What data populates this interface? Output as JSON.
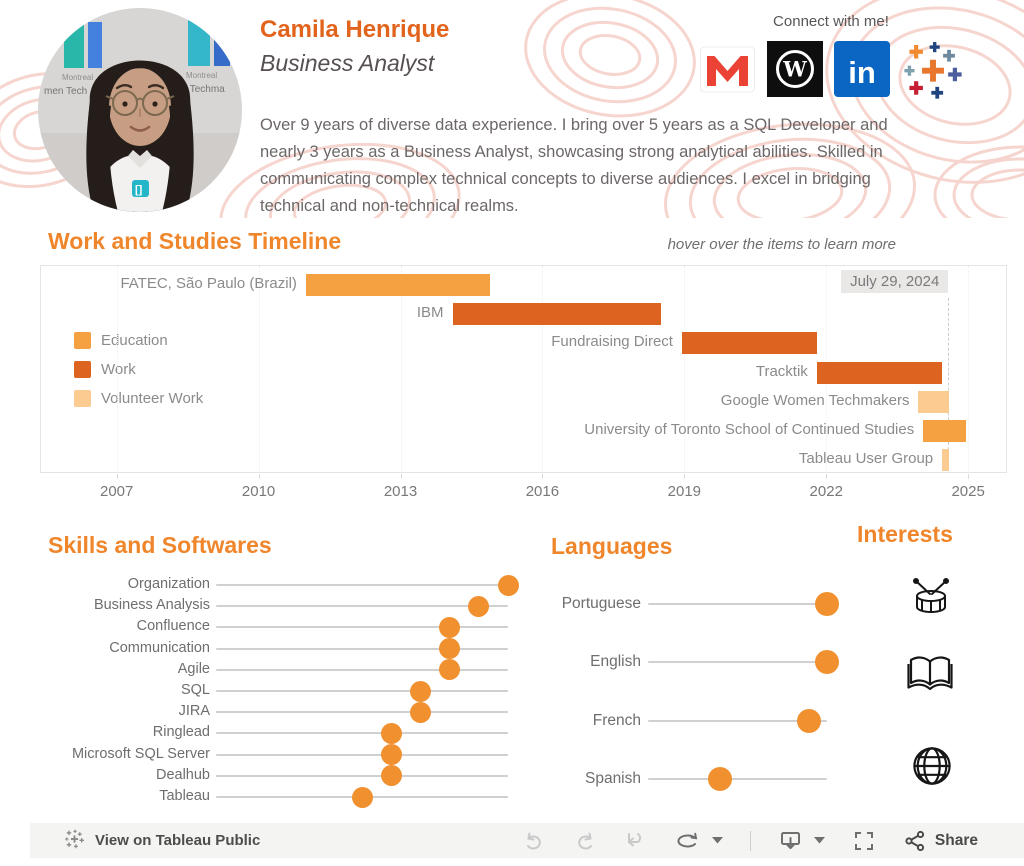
{
  "header": {
    "name": "Camila Henrique",
    "job_title": "Business Analyst",
    "bio": "Over 9 years of diverse data experience. I bring over 5 years as a SQL Developer and nearly 3 years as a Business Analyst, showcasing strong analytical abilities. Skilled in communicating complex technical concepts to diverse audiences. I excel in bridging technical and non-technical realms.",
    "connect_label": "Connect with  me!",
    "social_icons": [
      "gmail-icon",
      "wordpress-icon",
      "linkedin-icon",
      "tableau-icon"
    ]
  },
  "avatar": {
    "left_badge": "Montreal",
    "left_banner": "men Tech",
    "right_badge": "Montreal",
    "right_banner": "en Techma"
  },
  "sections": {
    "interests_title": "Interests"
  },
  "interests_icons": [
    "drum-icon",
    "book-icon",
    "globe-icon"
  ],
  "toolbar": {
    "view_label": "View on Tableau Public",
    "share_label": "Share",
    "icons": [
      "undo-icon",
      "redo-icon",
      "revert-icon",
      "refresh-icon",
      "dropdown-caret-icon",
      "download-icon",
      "dropdown-caret-icon",
      "fullscreen-icon",
      "share-icon"
    ]
  },
  "colors": {
    "accent_orange": "#F0862B",
    "name_orange": "#E2641C",
    "education": "#F5A142",
    "work": "#DC6320",
    "volunteer_work": "#FBCB92",
    "dot": "#F0902F",
    "linkedin_blue": "#0A66C2",
    "gmail_red": "#EA4335"
  },
  "chart_data": [
    {
      "id": "work-studies-timeline",
      "type": "bar",
      "variant": "gantt",
      "title": "Work and Studies Timeline",
      "subtitle": "hover over the items to learn more",
      "annotation": "July 29, 2024",
      "reference_line_x": 2024.58,
      "xlim": [
        2005.4,
        2025.8
      ],
      "xticks": [
        2007,
        2010,
        2013,
        2016,
        2019,
        2022,
        2025
      ],
      "legend_position": "left",
      "grid": "off",
      "legend": [
        {
          "label": "Education",
          "color": "#F5A142"
        },
        {
          "label": "Work",
          "color": "#DC6320"
        },
        {
          "label": "Volunteer Work",
          "color": "#FBCB92"
        }
      ],
      "items": [
        {
          "label": "FATEC, São Paulo (Brazil)",
          "category": "Education",
          "start": 2011.0,
          "end": 2014.9
        },
        {
          "label": "IBM",
          "category": "Work",
          "start": 2014.1,
          "end": 2018.5
        },
        {
          "label": "Fundraising Direct",
          "category": "Work",
          "start": 2018.95,
          "end": 2021.8
        },
        {
          "label": "Tracktik",
          "category": "Work",
          "start": 2021.8,
          "end": 2024.45
        },
        {
          "label": "Google Women Techmakers",
          "category": "Volunteer Work",
          "start": 2023.95,
          "end": 2024.6
        },
        {
          "label": "University of Toronto School of Continued Studies",
          "category": "Education",
          "start": 2024.05,
          "end": 2024.95
        },
        {
          "label": "Tableau User Group",
          "category": "Volunteer Work",
          "start": 2024.45,
          "end": 2024.6
        }
      ]
    },
    {
      "id": "skills-and-softwares",
      "type": "scatter",
      "variant": "dot-plot",
      "title": "Skills and Softwares",
      "xlim": [
        0,
        10
      ],
      "categories": [
        "Organization",
        "Business Analysis",
        "Confluence",
        "Communication",
        "Agile",
        "SQL",
        "JIRA",
        "Ringlead",
        "Microsoft SQL Server",
        "Dealhub",
        "Tableau"
      ],
      "values": [
        10,
        9,
        8,
        8,
        8,
        7,
        7,
        6,
        6,
        6,
        5
      ]
    },
    {
      "id": "languages",
      "type": "scatter",
      "variant": "dot-plot",
      "title": "Languages",
      "xlim": [
        0,
        10
      ],
      "categories": [
        "Portuguese",
        "English",
        "French",
        "Spanish"
      ],
      "values": [
        10,
        10,
        9,
        4
      ]
    }
  ]
}
